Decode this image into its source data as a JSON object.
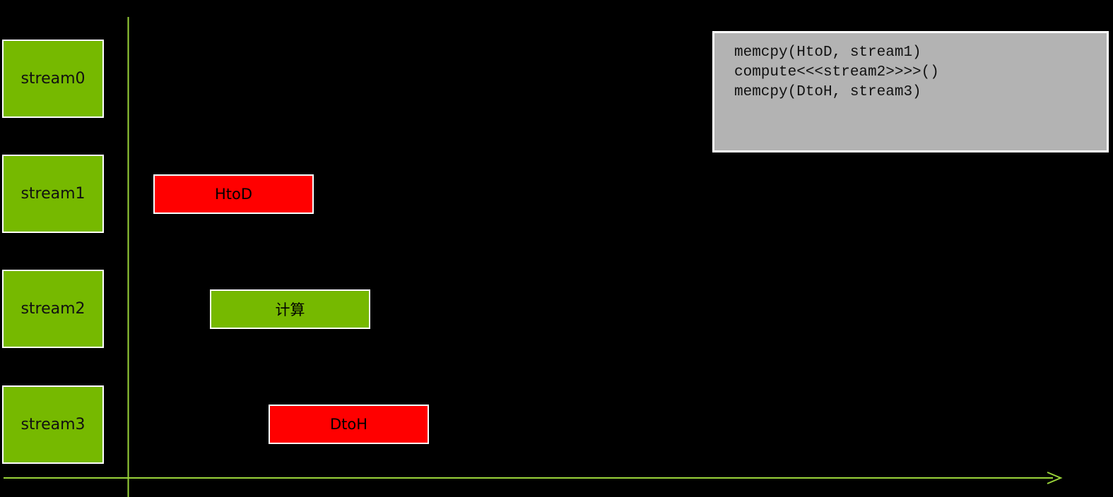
{
  "colors": {
    "background": "#000000",
    "stream_box": "#76b900",
    "transfer_task": "#ff0000",
    "compute_task": "#76b900",
    "code_box": "#b3b3b3",
    "axis": "#9ad43a"
  },
  "streams": [
    {
      "label": "stream0"
    },
    {
      "label": "stream1"
    },
    {
      "label": "stream2"
    },
    {
      "label": "stream3"
    }
  ],
  "tasks": [
    {
      "label": "HtoD",
      "stream": "stream1",
      "kind": "transfer"
    },
    {
      "label": "计算",
      "stream": "stream2",
      "kind": "compute"
    },
    {
      "label": "DtoH",
      "stream": "stream3",
      "kind": "transfer"
    }
  ],
  "code": {
    "lines": [
      "memcpy(HtoD, stream1)",
      "compute<<<stream2>>>>()",
      "memcpy(DtoH, stream3)"
    ]
  }
}
